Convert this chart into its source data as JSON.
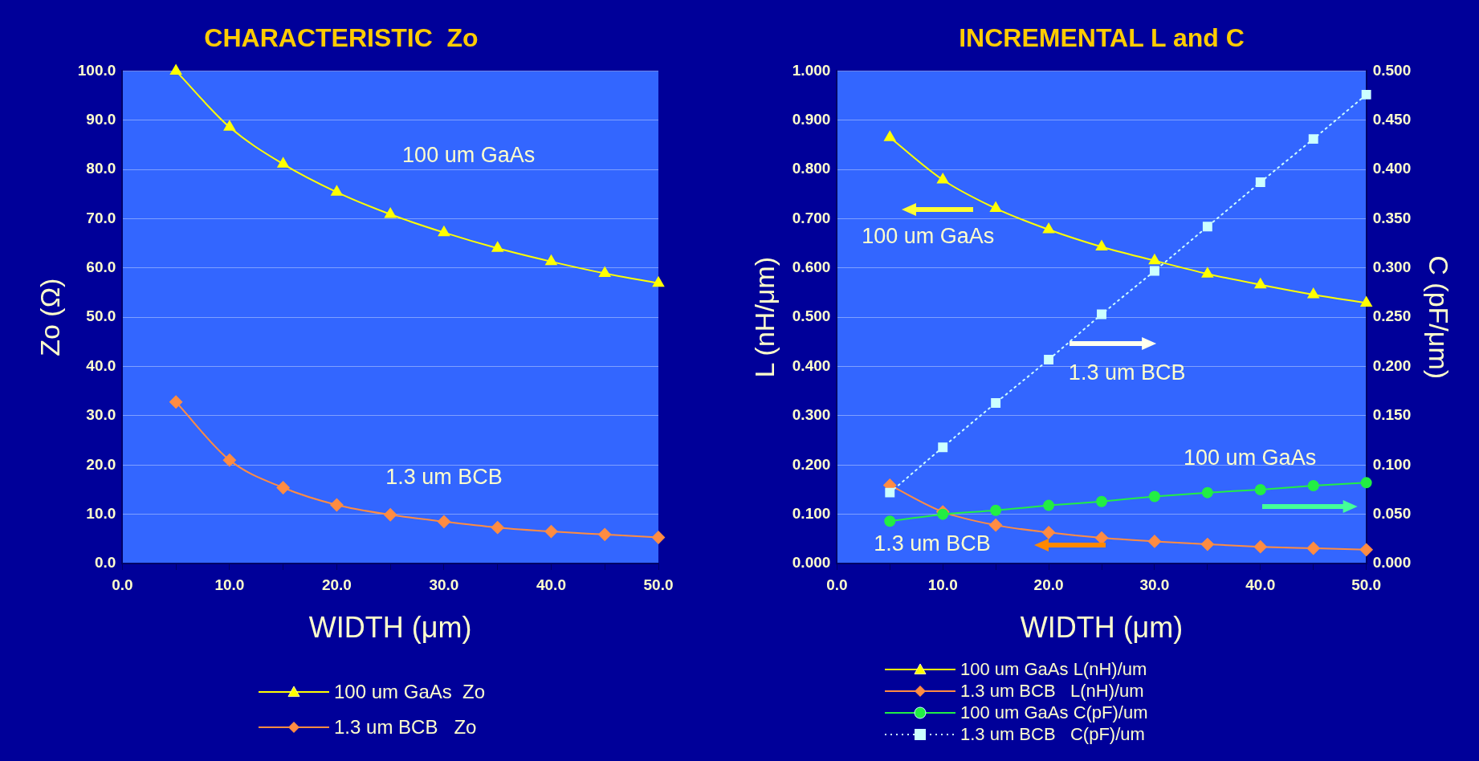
{
  "chart_data": [
    {
      "type": "line",
      "title": "CHARACTERISTIC  Zo",
      "xlabel": "WIDTH (μm)",
      "ylabel": "Zo (Ω)",
      "x": [
        5,
        10,
        15,
        20,
        25,
        30,
        35,
        40,
        45,
        50
      ],
      "xlim": [
        0,
        50
      ],
      "xticks": [
        {
          "value": 0,
          "label": "0.0"
        },
        {
          "value": 5,
          "label": null
        },
        {
          "value": 10,
          "label": "10.0"
        },
        {
          "value": 15,
          "label": null
        },
        {
          "value": 20,
          "label": "20.0"
        },
        {
          "value": 25,
          "label": null
        },
        {
          "value": 30,
          "label": "30.0"
        },
        {
          "value": 35,
          "label": null
        },
        {
          "value": 40,
          "label": "40.0"
        },
        {
          "value": 45,
          "label": null
        },
        {
          "value": 50,
          "label": "50.0"
        }
      ],
      "ylim": [
        0,
        100
      ],
      "yticks": [
        {
          "value": 0,
          "label": "0.0"
        },
        {
          "value": 10,
          "label": "10.0"
        },
        {
          "value": 20,
          "label": "20.0"
        },
        {
          "value": 30,
          "label": "30.0"
        },
        {
          "value": 40,
          "label": "40.0"
        },
        {
          "value": 50,
          "label": "50.0"
        },
        {
          "value": 60,
          "label": "60.0"
        },
        {
          "value": 70,
          "label": "70.0"
        },
        {
          "value": 80,
          "label": "80.0"
        },
        {
          "value": 90,
          "label": "90.0"
        },
        {
          "value": 100,
          "label": "100.0"
        }
      ],
      "grid": "y",
      "legend": "bottom",
      "series": [
        {
          "name": "100 um GaAs  Zo",
          "color": "#ffff00",
          "marker": "triangle",
          "values": [
            100,
            88.6,
            81.1,
            75.4,
            70.9,
            67.2,
            64.0,
            61.3,
            58.9,
            56.9
          ]
        },
        {
          "name": "1.3 um BCB   Zo",
          "color": "#ff8c42",
          "marker": "diamond",
          "values": [
            32.8,
            21.0,
            15.4,
            11.9,
            9.9,
            8.5,
            7.3,
            6.5,
            5.9,
            5.3
          ]
        }
      ],
      "annotations": [
        "100 um GaAs",
        "1.3 um BCB"
      ]
    },
    {
      "type": "line",
      "title": "INCREMENTAL L and C",
      "xlabel": "WIDTH (μm)",
      "ylabel": "L (nH/μm)",
      "y2label": "C (pF/μm)",
      "x": [
        5,
        10,
        15,
        20,
        25,
        30,
        35,
        40,
        45,
        50
      ],
      "xlim": [
        0,
        50
      ],
      "xticks": [
        {
          "value": 0,
          "label": "0.0"
        },
        {
          "value": 5,
          "label": null
        },
        {
          "value": 10,
          "label": "10.0"
        },
        {
          "value": 15,
          "label": null
        },
        {
          "value": 20,
          "label": "20.0"
        },
        {
          "value": 25,
          "label": null
        },
        {
          "value": 30,
          "label": "30.0"
        },
        {
          "value": 35,
          "label": null
        },
        {
          "value": 40,
          "label": "40.0"
        },
        {
          "value": 45,
          "label": null
        },
        {
          "value": 50,
          "label": "50.0"
        }
      ],
      "ylim": [
        0,
        1
      ],
      "yticks": [
        {
          "value": 0,
          "label": "0.000"
        },
        {
          "value": 0.1,
          "label": "0.100"
        },
        {
          "value": 0.2,
          "label": "0.200"
        },
        {
          "value": 0.3,
          "label": "0.300"
        },
        {
          "value": 0.4,
          "label": "0.400"
        },
        {
          "value": 0.5,
          "label": "0.500"
        },
        {
          "value": 0.6,
          "label": "0.600"
        },
        {
          "value": 0.7,
          "label": "0.700"
        },
        {
          "value": 0.8,
          "label": "0.800"
        },
        {
          "value": 0.9,
          "label": "0.900"
        },
        {
          "value": 1,
          "label": "1.000"
        }
      ],
      "y2lim": [
        0,
        0.5
      ],
      "y2ticks": [
        {
          "value": 0,
          "label": "0.000"
        },
        {
          "value": 0.05,
          "label": "0.050"
        },
        {
          "value": 0.1,
          "label": "0.100"
        },
        {
          "value": 0.15,
          "label": "0.150"
        },
        {
          "value": 0.2,
          "label": "0.200"
        },
        {
          "value": 0.25,
          "label": "0.250"
        },
        {
          "value": 0.3,
          "label": "0.300"
        },
        {
          "value": 0.35,
          "label": "0.350"
        },
        {
          "value": 0.4,
          "label": "0.400"
        },
        {
          "value": 0.45,
          "label": "0.450"
        },
        {
          "value": 0.5,
          "label": "0.500"
        }
      ],
      "grid": "y",
      "legend": "bottom",
      "series": [
        {
          "name": "100 um GaAs L(nH)/um",
          "color": "#ffff00",
          "marker": "triangle",
          "values": [
            0.865,
            0.779,
            0.721,
            0.678,
            0.643,
            0.615,
            0.588,
            0.566,
            0.546,
            0.529
          ]
        },
        {
          "name": "1.3 um BCB   L(nH)/um",
          "color": "#ff8c42",
          "marker": "diamond",
          "values": [
            0.159,
            0.105,
            0.078,
            0.063,
            0.052,
            0.045,
            0.039,
            0.034,
            0.031,
            0.028
          ]
        },
        {
          "name": "100 um GaAs C(pF)/um",
          "color": "#22ee44",
          "marker": "circle",
          "axis": "y2",
          "values": [
            0.043,
            0.05,
            0.054,
            0.059,
            0.063,
            0.068,
            0.072,
            0.075,
            0.079,
            0.082
          ]
        },
        {
          "name": "1.3 um BCB   C(pF)/um",
          "color": "#ccffff",
          "marker": "square",
          "line_style": "dotted",
          "axis": "y2",
          "values": [
            0.072,
            0.118,
            0.163,
            0.207,
            0.253,
            0.297,
            0.342,
            0.387,
            0.431,
            0.476
          ]
        }
      ],
      "annotations": [
        "100 um GaAs",
        "1.3 um BCB",
        "100 um GaAs",
        "1.3 um BCB"
      ]
    }
  ]
}
